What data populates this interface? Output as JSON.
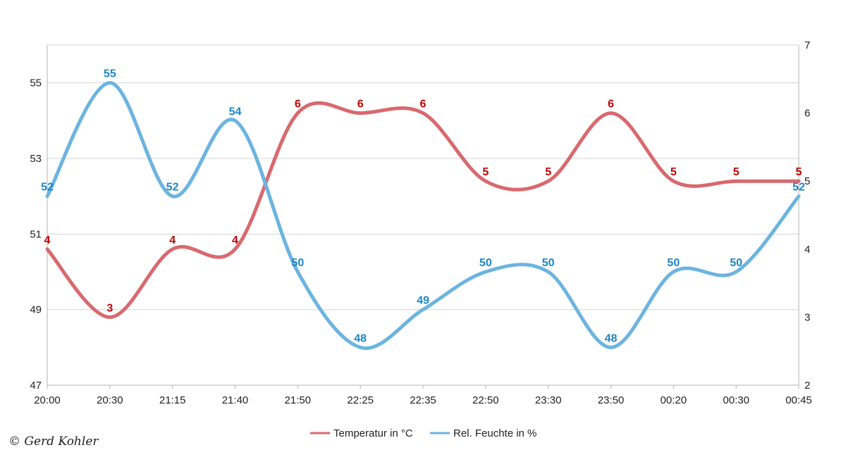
{
  "chart_data": {
    "type": "line",
    "categories": [
      "20:00",
      "20:30",
      "21:15",
      "21:40",
      "21:50",
      "22:25",
      "22:35",
      "22:50",
      "23:30",
      "23:50",
      "00:20",
      "00:30",
      "00:45"
    ],
    "series": [
      {
        "name": "Temperatur in °C",
        "axis": "right",
        "color": "#d9696f",
        "label_color": "#c00000",
        "values": [
          4,
          3,
          4,
          4,
          6,
          6,
          6,
          5,
          5,
          6,
          5,
          5,
          5
        ],
        "plot_values": [
          4.0,
          3.0,
          4.0,
          4.0,
          6.0,
          6.0,
          6.0,
          5.0,
          5.0,
          6.0,
          5.0,
          5.0,
          5.0
        ]
      },
      {
        "name": "Rel. Feuchte in %",
        "axis": "left",
        "color": "#6cb4e0",
        "label_color": "#1a87c8",
        "values": [
          52,
          55,
          52,
          54,
          50,
          48,
          49,
          50,
          50,
          48,
          50,
          50,
          52
        ],
        "plot_values": [
          52,
          55,
          52,
          54,
          50,
          48,
          49,
          50,
          50,
          48,
          50,
          50,
          52
        ]
      }
    ],
    "y_left": {
      "min": 47,
      "max": 56,
      "ticks": [
        47,
        49,
        51,
        53,
        55
      ]
    },
    "y_right": {
      "min": 2,
      "max": 7,
      "ticks": [
        2,
        3,
        4,
        5,
        6,
        7
      ]
    },
    "grid": true,
    "legend": "bottom",
    "line_style": "smooth",
    "watermark": "© Gerd Kohler"
  }
}
